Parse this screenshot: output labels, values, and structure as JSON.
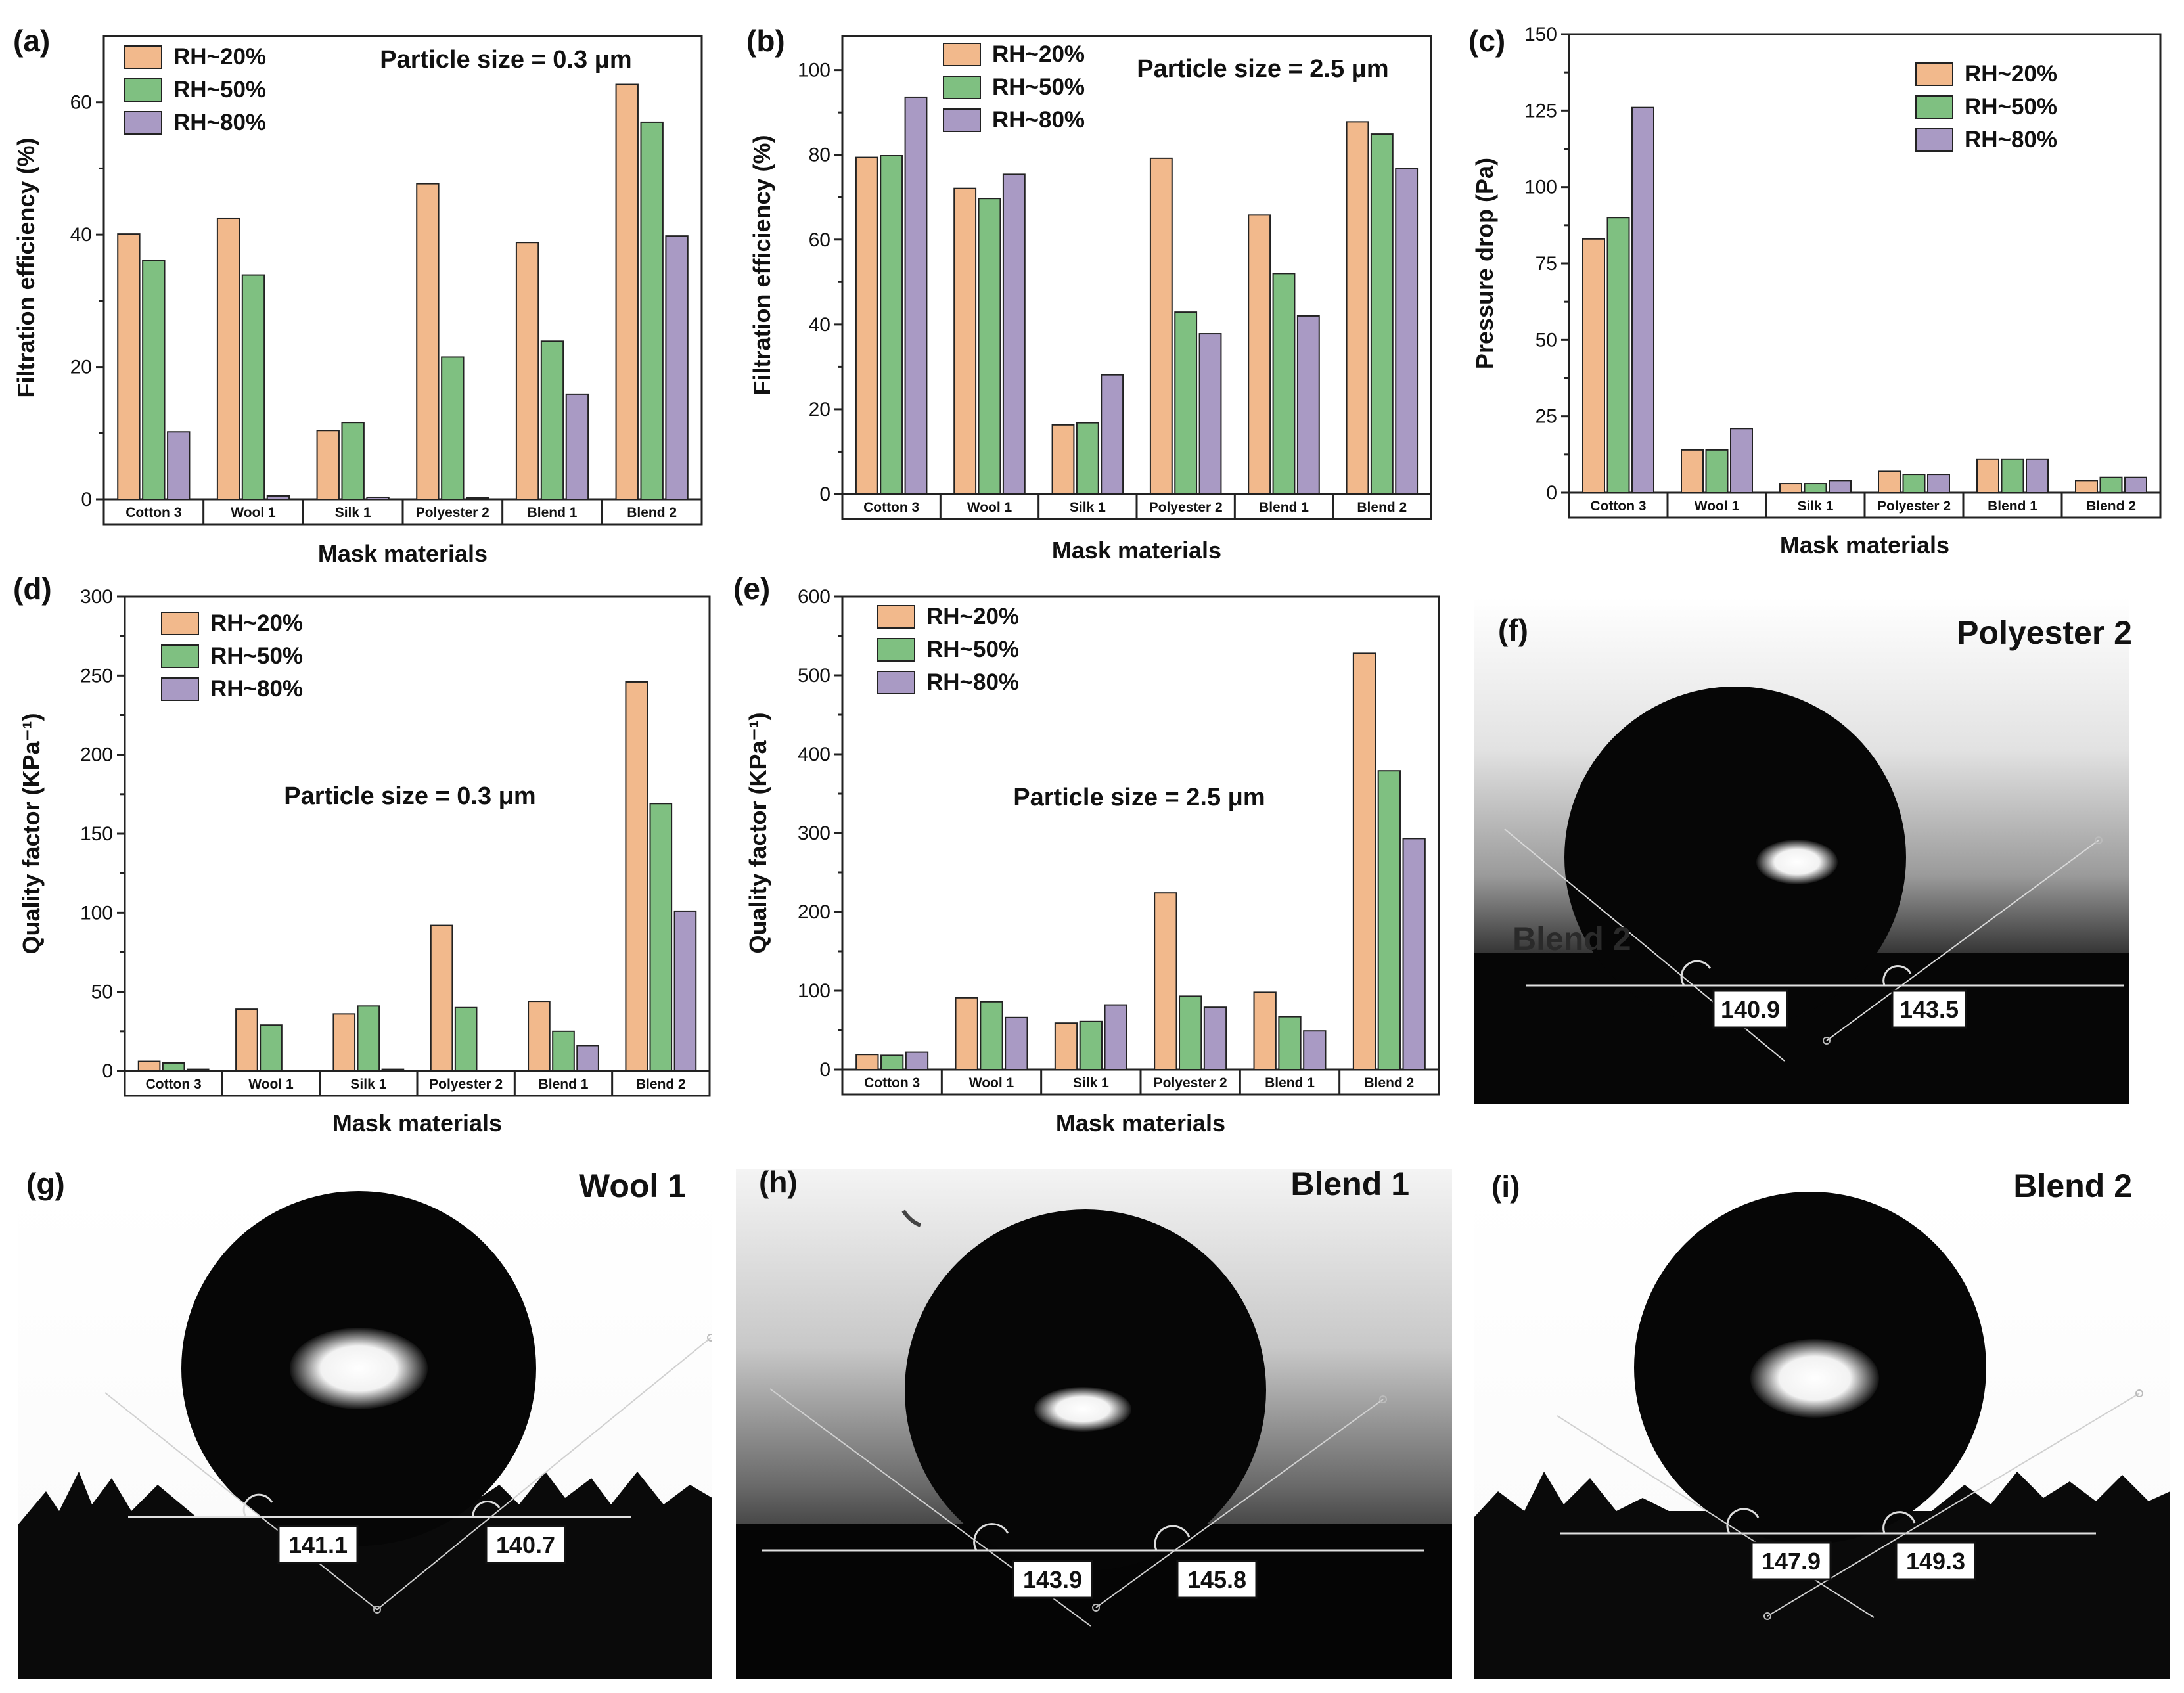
{
  "colors": {
    "rh20": "#f2b98c",
    "rh50": "#7fc081",
    "rh80": "#a99ac4"
  },
  "xlabel": "Mask materials",
  "chart_data": [
    {
      "panel": "(a)",
      "type": "bar",
      "title": "Particle size = 0.3 μm",
      "ylabel": "Filtration efficiency (%)",
      "xlabel": "Mask materials",
      "ylim": [
        0,
        70
      ],
      "yticks": [
        0,
        20,
        40,
        60
      ],
      "ytick_labels": [
        "0",
        "20",
        "40",
        "60"
      ],
      "categories": [
        "Cotton 3",
        "Wool 1",
        "Silk 1",
        "Polyester 2",
        "Blend 1",
        "Blend 2"
      ],
      "series": [
        {
          "name": "RH~20%",
          "values": [
            40.1,
            42.4,
            10.4,
            47.7,
            38.8,
            62.7
          ]
        },
        {
          "name": "RH~50%",
          "values": [
            36.1,
            33.9,
            11.6,
            21.5,
            23.9,
            57.0
          ]
        },
        {
          "name": "RH~80%",
          "values": [
            10.2,
            0.5,
            0.3,
            0.2,
            15.9,
            39.8
          ]
        }
      ]
    },
    {
      "panel": "(b)",
      "type": "bar",
      "title": "Particle size = 2.5 μm",
      "ylabel": "Filtration efficiency (%)",
      "xlabel": "Mask materials",
      "ylim": [
        0,
        108
      ],
      "yticks": [
        0,
        20,
        40,
        60,
        80,
        100
      ],
      "ytick_labels": [
        "0",
        "20",
        "40",
        "60",
        "80",
        "100"
      ],
      "categories": [
        "Cotton 3",
        "Wool 1",
        "Silk 1",
        "Polyester 2",
        "Blend 1",
        "Blend 2"
      ],
      "series": [
        {
          "name": "RH~20%",
          "values": [
            79.4,
            72.1,
            16.3,
            79.2,
            65.8,
            87.8
          ]
        },
        {
          "name": "RH~50%",
          "values": [
            79.8,
            69.7,
            16.8,
            42.9,
            52.0,
            84.9
          ]
        },
        {
          "name": "RH~80%",
          "values": [
            93.6,
            75.4,
            28.1,
            37.8,
            42.0,
            76.8
          ]
        }
      ]
    },
    {
      "panel": "(c)",
      "type": "bar",
      "title": "",
      "ylabel": "Pressure drop (Pa)",
      "xlabel": "Mask materials",
      "ylim": [
        0,
        150
      ],
      "yticks": [
        0,
        25,
        50,
        75,
        100,
        125,
        150
      ],
      "ytick_labels": [
        "0",
        "25",
        "50",
        "75",
        "100",
        "125",
        "150"
      ],
      "categories": [
        "Cotton 3",
        "Wool 1",
        "Silk 1",
        "Polyester 2",
        "Blend 1",
        "Blend 2"
      ],
      "series": [
        {
          "name": "RH~20%",
          "values": [
            83,
            14,
            3,
            7,
            11,
            4
          ]
        },
        {
          "name": "RH~50%",
          "values": [
            90,
            14,
            3,
            6,
            11,
            5
          ]
        },
        {
          "name": "RH~80%",
          "values": [
            126,
            21,
            4,
            6,
            11,
            5
          ]
        }
      ]
    },
    {
      "panel": "(d)",
      "type": "bar",
      "title": "Particle size = 0.3 μm",
      "ylabel": "Quality factor (KPa⁻¹)",
      "xlabel": "Mask materials",
      "ylim": [
        0,
        300
      ],
      "yticks": [
        0,
        50,
        100,
        150,
        200,
        250,
        300
      ],
      "ytick_labels": [
        "0",
        "50",
        "100",
        "150",
        "200",
        "250",
        "300"
      ],
      "categories": [
        "Cotton 3",
        "Wool 1",
        "Silk 1",
        "Polyester 2",
        "Blend 1",
        "Blend 2"
      ],
      "series": [
        {
          "name": "RH~20%",
          "values": [
            6,
            39,
            36,
            92,
            44,
            246
          ]
        },
        {
          "name": "RH~50%",
          "values": [
            5,
            29,
            41,
            40,
            25,
            169
          ]
        },
        {
          "name": "RH~80%",
          "values": [
            1,
            0,
            1,
            0,
            16,
            101
          ]
        }
      ]
    },
    {
      "panel": "(e)",
      "type": "bar",
      "title": "Particle size = 2.5 μm",
      "ylabel": "Quality factor (KPa⁻¹)",
      "xlabel": "Mask materials",
      "ylim": [
        0,
        600
      ],
      "yticks": [
        0,
        100,
        200,
        300,
        400,
        500,
        600
      ],
      "ytick_labels": [
        "0",
        "100",
        "200",
        "300",
        "400",
        "500",
        "600"
      ],
      "categories": [
        "Cotton 3",
        "Wool 1",
        "Silk 1",
        "Polyester 2",
        "Blend 1",
        "Blend 2"
      ],
      "series": [
        {
          "name": "RH~20%",
          "values": [
            19,
            91,
            59,
            224,
            98,
            528
          ]
        },
        {
          "name": "RH~50%",
          "values": [
            18,
            86,
            61,
            93,
            67,
            379
          ]
        },
        {
          "name": "RH~80%",
          "values": [
            22,
            66,
            82,
            79,
            49,
            293
          ]
        }
      ]
    }
  ],
  "photos": [
    {
      "panel": "(f)",
      "title": "Polyester 2",
      "left_angle": "140.9",
      "right_angle": "143.5",
      "faint_text": "Blend 2"
    },
    {
      "panel": "(g)",
      "title": "Wool 1",
      "left_angle": "141.1",
      "right_angle": "140.7"
    },
    {
      "panel": "(h)",
      "title": "Blend 1",
      "left_angle": "143.9",
      "right_angle": "145.8"
    },
    {
      "panel": "(i)",
      "title": "Blend 2",
      "left_angle": "147.9",
      "right_angle": "149.3"
    }
  ]
}
